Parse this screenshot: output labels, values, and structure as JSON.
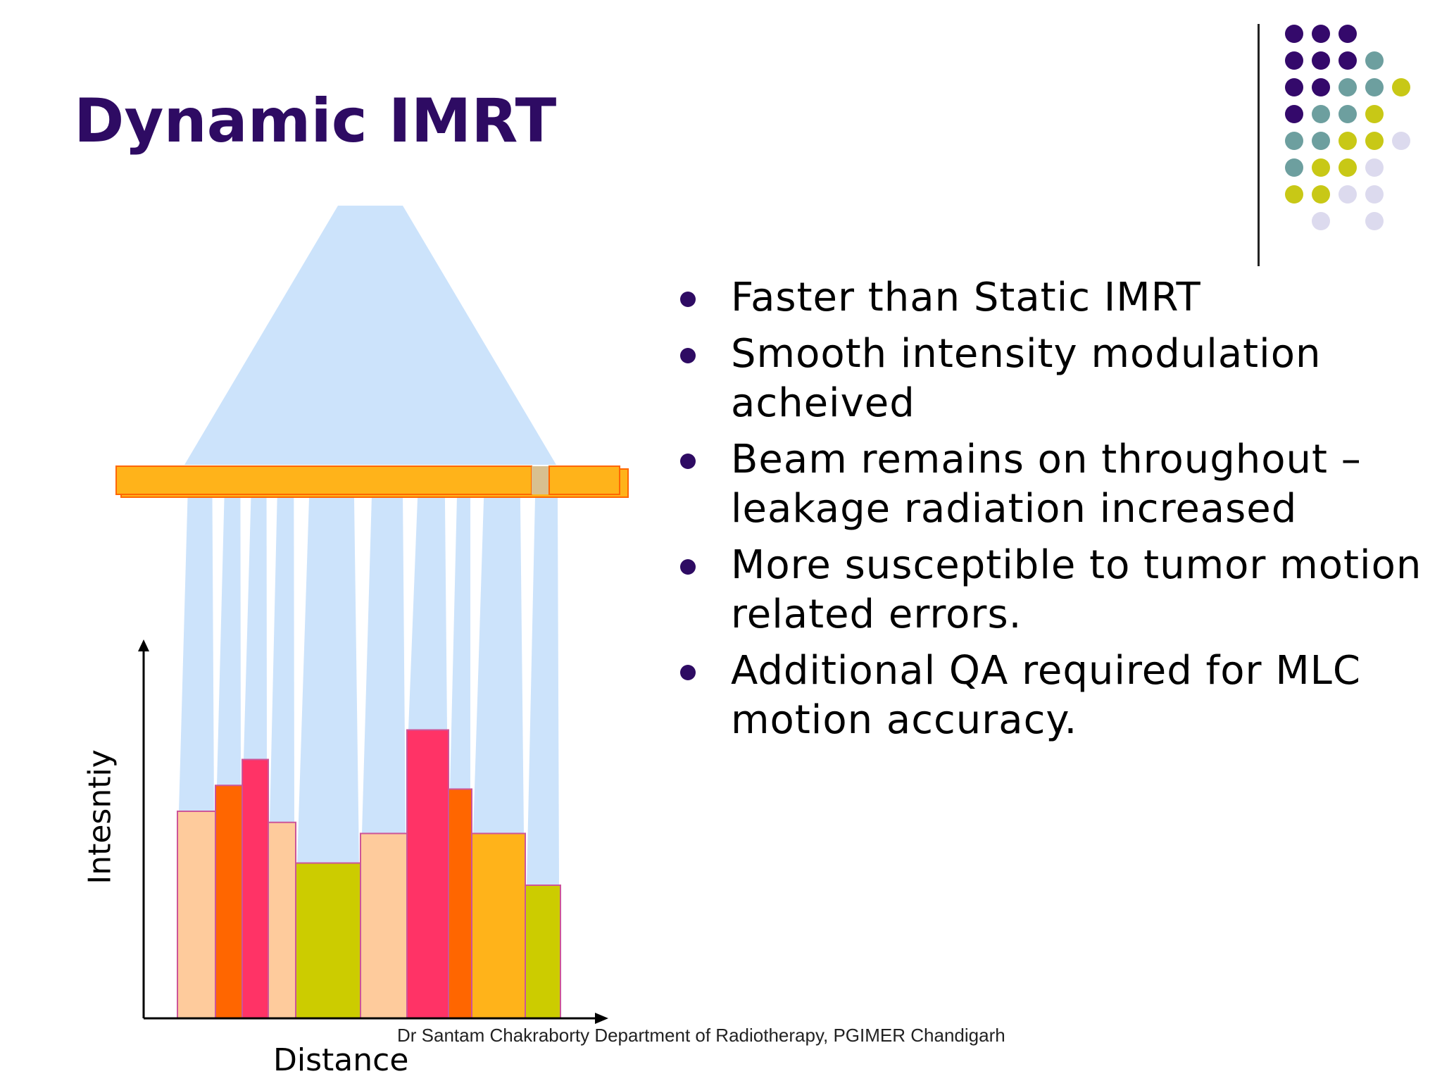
{
  "slide": {
    "title": "Dynamic IMRT",
    "bullets": [
      "Faster than Static IMRT",
      "Smooth intensity modulation acheived",
      "Beam remains on throughout – leakage radiation increased",
      "More susceptible to tumor motion related errors.",
      "Additional QA required for MLC motion accuracy."
    ],
    "footer": "Dr Santam Chakraborty Department of Radiotherapy, PGIMER Chandigarh"
  },
  "diagram": {
    "x_axis_label": "Distance",
    "y_axis_label": "Intesntiy",
    "bar_colors": [
      "#fecb9c",
      "#ff6600",
      "#ff3366",
      "#fecb9c",
      "#cccc00",
      "#fecb9c",
      "#ff3366",
      "#ff6600",
      "#ffb31a",
      "#cccc00"
    ],
    "bar_heights": [
      0.56,
      0.63,
      0.7,
      0.53,
      0.42,
      0.5,
      0.78,
      0.62,
      0.5,
      0.36
    ]
  },
  "colors": {
    "title": "#2e0b63",
    "beam": "#cce3fb",
    "collimator": "#ffb31a",
    "collimator_border": "#ff6600",
    "dot_purple": "#34096b",
    "dot_teal": "#6d9f9f",
    "dot_yellow": "#c8c816",
    "dot_lavender": "#dcdaee"
  },
  "decoration": {
    "dot_grid": [
      [
        "purple",
        "purple",
        "purple",
        null,
        null
      ],
      [
        "purple",
        "purple",
        "purple",
        "teal",
        null
      ],
      [
        "purple",
        "purple",
        "teal",
        "teal",
        "yellow"
      ],
      [
        "purple",
        "teal",
        "teal",
        "yellow",
        null
      ],
      [
        "teal",
        "teal",
        "yellow",
        "yellow",
        "lavender"
      ],
      [
        "teal",
        "yellow",
        "yellow",
        "lavender",
        null
      ],
      [
        "yellow",
        "yellow",
        "lavender",
        "lavender",
        null
      ],
      [
        null,
        "lavender",
        null,
        "lavender",
        null
      ]
    ]
  }
}
